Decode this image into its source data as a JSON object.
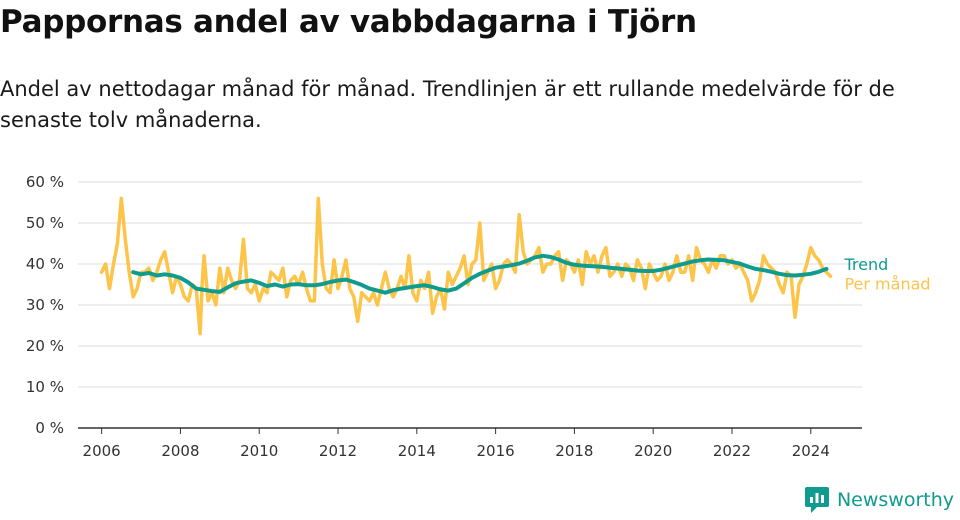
{
  "title": "Pappornas andel av vabbdagarna i Tjörn",
  "subtitle": "Andel av nettodagar månad för månad. Trendlinjen är ett rullande medelvärde för de senaste tolv månaderna.",
  "brand": "Newsworthy",
  "colors": {
    "monthly": "#fcc449",
    "trend": "#0f9b8e",
    "grid": "#dddddd",
    "axis": "#333333",
    "brand": "#0f9b8e"
  },
  "chart_data": {
    "type": "line",
    "title": "",
    "xlabel": "",
    "ylabel": "",
    "xlim": [
      2005.4,
      2025.3
    ],
    "ylim": [
      0,
      60
    ],
    "grid": true,
    "x_ticks": [
      2006,
      2008,
      2010,
      2012,
      2014,
      2016,
      2018,
      2020,
      2022,
      2024
    ],
    "x_tick_labels": [
      "2006",
      "2008",
      "2010",
      "2012",
      "2014",
      "2016",
      "2018",
      "2020",
      "2022",
      "2024"
    ],
    "y_ticks": [
      0,
      10,
      20,
      30,
      40,
      50,
      60
    ],
    "y_tick_labels": [
      "0 %",
      "10 %",
      "20 %",
      "30 %",
      "40 %",
      "50 %",
      "60 %"
    ],
    "series": [
      {
        "name": "Per månad",
        "x": [
          2006.0,
          2006.1,
          2006.2,
          2006.3,
          2006.4,
          2006.5,
          2006.6,
          2006.7,
          2006.8,
          2006.9,
          2007.0,
          2007.1,
          2007.2,
          2007.3,
          2007.4,
          2007.5,
          2007.6,
          2007.7,
          2007.8,
          2007.9,
          2008.0,
          2008.1,
          2008.2,
          2008.3,
          2008.4,
          2008.5,
          2008.55,
          2008.6,
          2008.7,
          2008.8,
          2008.9,
          2009.0,
          2009.1,
          2009.2,
          2009.3,
          2009.4,
          2009.5,
          2009.6,
          2009.7,
          2009.8,
          2009.9,
          2010.0,
          2010.1,
          2010.2,
          2010.3,
          2010.4,
          2010.5,
          2010.6,
          2010.7,
          2010.8,
          2010.9,
          2011.0,
          2011.1,
          2011.2,
          2011.3,
          2011.4,
          2011.5,
          2011.6,
          2011.7,
          2011.8,
          2011.9,
          2012.0,
          2012.1,
          2012.2,
          2012.3,
          2012.4,
          2012.5,
          2012.6,
          2012.7,
          2012.8,
          2012.9,
          2013.0,
          2013.1,
          2013.2,
          2013.3,
          2013.4,
          2013.5,
          2013.6,
          2013.7,
          2013.8,
          2013.9,
          2014.0,
          2014.1,
          2014.2,
          2014.3,
          2014.4,
          2014.5,
          2014.6,
          2014.7,
          2014.8,
          2014.9,
          2015.0,
          2015.1,
          2015.2,
          2015.3,
          2015.4,
          2015.5,
          2015.6,
          2015.7,
          2015.8,
          2015.9,
          2016.0,
          2016.1,
          2016.2,
          2016.3,
          2016.4,
          2016.5,
          2016.6,
          2016.7,
          2016.8,
          2016.9,
          2017.0,
          2017.1,
          2017.2,
          2017.3,
          2017.4,
          2017.5,
          2017.6,
          2017.7,
          2017.8,
          2017.9,
          2018.0,
          2018.1,
          2018.2,
          2018.3,
          2018.4,
          2018.5,
          2018.6,
          2018.7,
          2018.8,
          2018.9,
          2019.0,
          2019.1,
          2019.2,
          2019.3,
          2019.4,
          2019.5,
          2019.6,
          2019.7,
          2019.8,
          2019.9,
          2020.0,
          2020.1,
          2020.2,
          2020.3,
          2020.4,
          2020.5,
          2020.6,
          2020.7,
          2020.8,
          2020.9,
          2021.0,
          2021.1,
          2021.2,
          2021.3,
          2021.4,
          2021.5,
          2021.6,
          2021.7,
          2021.8,
          2021.9,
          2022.0,
          2022.1,
          2022.2,
          2022.3,
          2022.4,
          2022.5,
          2022.6,
          2022.7,
          2022.8,
          2022.9,
          2023.0,
          2023.1,
          2023.2,
          2023.3,
          2023.4,
          2023.5,
          2023.6,
          2023.7,
          2023.8,
          2023.9,
          2024.0,
          2024.1,
          2024.2,
          2024.3,
          2024.4,
          2024.5
        ],
        "values": [
          38,
          40,
          34,
          40,
          45,
          56,
          46,
          38,
          32,
          34,
          38,
          38,
          39,
          36,
          38,
          41,
          43,
          38,
          33,
          37,
          35,
          32,
          31,
          35,
          34,
          23,
          35,
          42,
          31,
          33,
          30,
          39,
          33,
          39,
          36,
          34,
          36,
          46,
          34,
          33,
          35,
          31,
          34,
          33,
          38,
          37,
          36,
          39,
          32,
          36,
          37,
          35,
          38,
          34,
          31,
          31,
          56,
          40,
          34,
          33,
          41,
          34,
          37,
          41,
          34,
          32,
          26,
          33,
          32,
          31,
          33,
          30,
          34,
          38,
          34,
          32,
          34,
          37,
          34,
          42,
          33,
          31,
          36,
          34,
          38,
          28,
          32,
          34,
          29,
          38,
          35,
          37,
          39,
          42,
          35,
          40,
          41,
          50,
          36,
          38,
          40,
          34,
          36,
          40,
          41,
          40,
          38,
          52,
          43,
          40,
          41,
          42,
          44,
          38,
          40,
          40,
          42,
          43,
          36,
          41,
          40,
          38,
          41,
          35,
          43,
          40,
          42,
          38,
          42,
          44,
          37,
          38,
          40,
          37,
          40,
          39,
          36,
          41,
          39,
          34,
          40,
          38,
          36,
          37,
          40,
          36,
          38,
          42,
          38,
          38,
          42,
          36,
          44,
          41,
          40,
          38,
          41,
          39,
          42,
          42,
          40,
          41,
          39,
          40,
          38,
          36,
          31,
          33,
          36,
          42,
          40,
          39,
          38,
          35,
          33,
          38,
          37,
          27,
          35,
          37,
          40,
          44,
          42,
          41,
          39,
          38,
          37
        ]
      },
      {
        "name": "Trend",
        "x": [
          2006.8,
          2007.0,
          2007.2,
          2007.4,
          2007.6,
          2007.8,
          2008.0,
          2008.2,
          2008.4,
          2008.6,
          2008.8,
          2009.0,
          2009.2,
          2009.4,
          2009.6,
          2009.8,
          2010.0,
          2010.2,
          2010.4,
          2010.6,
          2010.8,
          2011.0,
          2011.2,
          2011.4,
          2011.6,
          2011.8,
          2012.0,
          2012.2,
          2012.4,
          2012.6,
          2012.8,
          2013.0,
          2013.2,
          2013.4,
          2013.6,
          2013.8,
          2014.0,
          2014.2,
          2014.4,
          2014.6,
          2014.8,
          2015.0,
          2015.2,
          2015.4,
          2015.6,
          2015.8,
          2016.0,
          2016.2,
          2016.4,
          2016.6,
          2016.8,
          2017.0,
          2017.2,
          2017.4,
          2017.6,
          2017.8,
          2018.0,
          2018.2,
          2018.4,
          2018.6,
          2018.8,
          2019.0,
          2019.2,
          2019.4,
          2019.6,
          2019.8,
          2020.0,
          2020.2,
          2020.4,
          2020.6,
          2020.8,
          2021.0,
          2021.2,
          2021.4,
          2021.6,
          2021.8,
          2022.0,
          2022.2,
          2022.4,
          2022.6,
          2022.8,
          2023.0,
          2023.2,
          2023.4,
          2023.6,
          2023.8,
          2024.0,
          2024.2,
          2024.4
        ],
        "values": [
          38,
          37.5,
          37.8,
          37.2,
          37.5,
          37.2,
          36.6,
          35.5,
          34.0,
          33.7,
          33.4,
          33.2,
          34.3,
          35.3,
          35.7,
          36.0,
          35.4,
          34.6,
          35.0,
          34.5,
          35.0,
          35.1,
          34.8,
          34.8,
          35.1,
          35.6,
          36.0,
          36.2,
          35.6,
          34.9,
          34.0,
          33.5,
          33.0,
          33.6,
          34.0,
          34.3,
          34.6,
          34.8,
          34.4,
          33.8,
          33.5,
          34.0,
          35.3,
          36.6,
          37.6,
          38.4,
          39.1,
          39.4,
          39.7,
          40.1,
          40.8,
          41.6,
          42.0,
          41.7,
          41.1,
          40.3,
          39.8,
          39.6,
          39.5,
          39.4,
          39.2,
          39.0,
          38.8,
          38.6,
          38.4,
          38.3,
          38.3,
          38.6,
          39.1,
          39.6,
          40.1,
          40.6,
          40.9,
          41.1,
          41.0,
          40.9,
          40.5,
          40.1,
          39.4,
          38.8,
          38.5,
          38.1,
          37.6,
          37.3,
          37.2,
          37.4,
          37.6,
          38.1,
          38.8
        ]
      }
    ]
  }
}
